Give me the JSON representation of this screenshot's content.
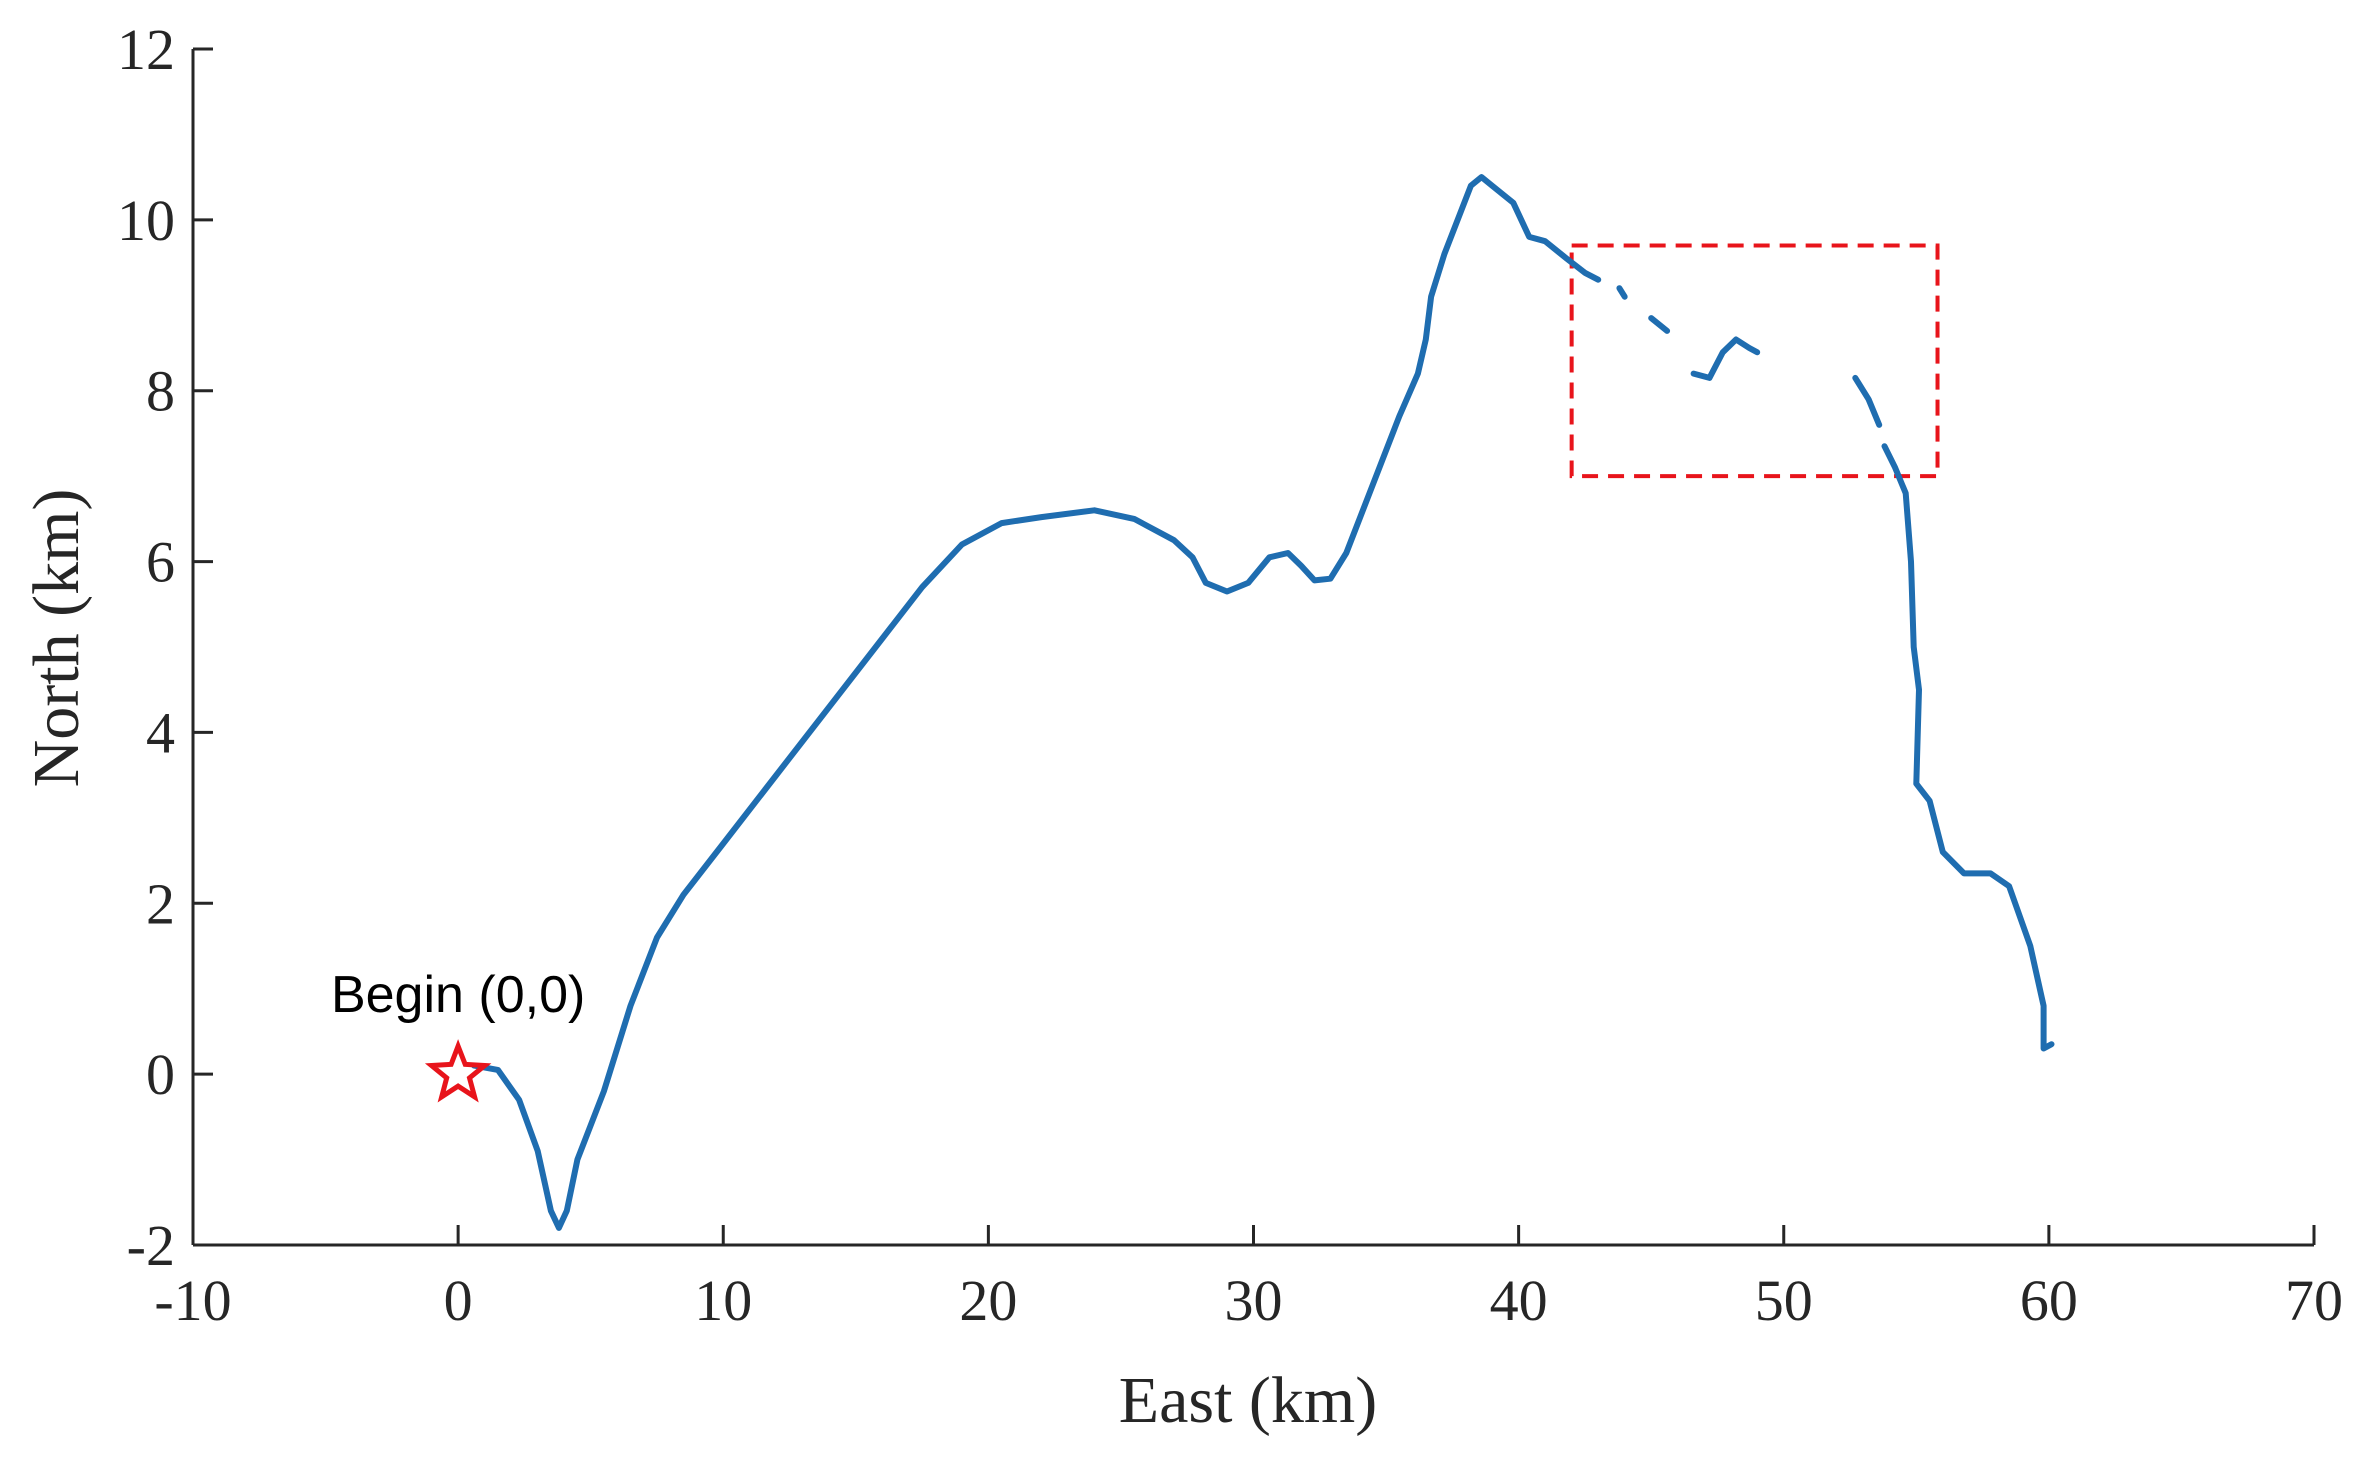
{
  "chart_data": {
    "type": "line",
    "title": "",
    "xlabel": "East (km)",
    "ylabel": "North (km)",
    "xlim": [
      -10,
      70
    ],
    "ylim": [
      -2,
      12
    ],
    "xticks": [
      -10,
      0,
      10,
      20,
      30,
      40,
      50,
      60,
      70
    ],
    "yticks": [
      -2,
      0,
      2,
      4,
      6,
      8,
      10,
      12
    ],
    "x_tick_labels": [
      "-10",
      "0",
      "10",
      "20",
      "30",
      "40",
      "50",
      "60",
      "70"
    ],
    "y_tick_labels": [
      "-2",
      "0",
      "2",
      "4",
      "6",
      "8",
      "10",
      "12"
    ],
    "grid": false,
    "line_color": "#1f6db0",
    "series": [
      {
        "name": "",
        "segments": [
          [
            [
              0.6,
              0.1
            ],
            [
              1.5,
              0.05
            ],
            [
              2.3,
              -0.3
            ],
            [
              3.0,
              -0.9
            ],
            [
              3.5,
              -1.6
            ],
            [
              3.8,
              -1.8
            ],
            [
              4.1,
              -1.6
            ],
            [
              4.5,
              -1.0
            ],
            [
              5.5,
              -0.2
            ],
            [
              6.5,
              0.8
            ],
            [
              7.5,
              1.6
            ],
            [
              8.5,
              2.1
            ],
            [
              10,
              2.7
            ],
            [
              12,
              3.5
            ],
            [
              14,
              4.3
            ],
            [
              16,
              5.1
            ],
            [
              17.5,
              5.7
            ],
            [
              19,
              6.2
            ],
            [
              20.5,
              6.45
            ],
            [
              22,
              6.52
            ],
            [
              24,
              6.6
            ],
            [
              25.5,
              6.5
            ],
            [
              27,
              6.25
            ],
            [
              27.7,
              6.05
            ],
            [
              28.2,
              5.75
            ],
            [
              29,
              5.65
            ],
            [
              29.8,
              5.75
            ],
            [
              30.6,
              6.05
            ],
            [
              31.3,
              6.1
            ],
            [
              31.8,
              5.95
            ],
            [
              32.3,
              5.78
            ],
            [
              32.9,
              5.8
            ],
            [
              33.5,
              6.1
            ],
            [
              34.5,
              6.9
            ],
            [
              35.5,
              7.7
            ],
            [
              36.2,
              8.2
            ],
            [
              36.5,
              8.6
            ],
            [
              36.7,
              9.1
            ],
            [
              37.2,
              9.6
            ],
            [
              38.2,
              10.4
            ],
            [
              38.6,
              10.5
            ],
            [
              39.0,
              10.4
            ],
            [
              39.8,
              10.2
            ],
            [
              40.4,
              9.8
            ],
            [
              41.0,
              9.75
            ],
            [
              41.8,
              9.55
            ],
            [
              42.5,
              9.38
            ],
            [
              43.0,
              9.3
            ]
          ],
          [
            [
              43.8,
              9.2
            ],
            [
              44.0,
              9.1
            ]
          ],
          [
            [
              45.0,
              8.85
            ],
            [
              45.6,
              8.7
            ]
          ],
          [
            [
              46.6,
              8.2
            ],
            [
              47.2,
              8.15
            ],
            [
              47.7,
              8.45
            ],
            [
              48.2,
              8.6
            ],
            [
              48.7,
              8.5
            ],
            [
              49.0,
              8.45
            ]
          ],
          [
            [
              52.7,
              8.15
            ],
            [
              53.2,
              7.9
            ],
            [
              53.6,
              7.6
            ]
          ],
          [
            [
              53.8,
              7.35
            ],
            [
              54.2,
              7.1
            ],
            [
              54.6,
              6.8
            ],
            [
              54.8,
              6.0
            ],
            [
              54.9,
              5.0
            ],
            [
              55.1,
              4.5
            ],
            [
              55.0,
              3.4
            ],
            [
              55.5,
              3.2
            ],
            [
              56.0,
              2.6
            ],
            [
              56.8,
              2.35
            ],
            [
              57.8,
              2.35
            ],
            [
              58.5,
              2.2
            ],
            [
              59.3,
              1.5
            ],
            [
              59.8,
              0.8
            ],
            [
              59.8,
              0.3
            ],
            [
              60.1,
              0.35
            ]
          ]
        ]
      }
    ],
    "annotations": [
      {
        "text": "Begin (0,0)",
        "x": 0,
        "y": 0,
        "marker": "star",
        "marker_color": "#e8141b"
      }
    ],
    "highlight_box": {
      "x": [
        42,
        55.8
      ],
      "y": [
        7.0,
        9.7
      ],
      "style": "dashed",
      "color": "#e8141b"
    }
  }
}
